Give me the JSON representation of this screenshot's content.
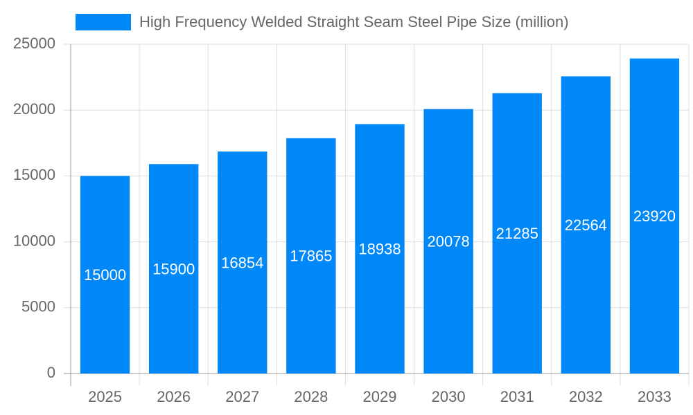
{
  "chart_data": {
    "type": "bar",
    "categories": [
      "2025",
      "2026",
      "2027",
      "2028",
      "2029",
      "2030",
      "2031",
      "2032",
      "2033"
    ],
    "series": [
      {
        "name": "High Frequency Welded Straight Seam Steel Pipe Size (million)",
        "color": "#0088f8",
        "values": [
          15000,
          15900,
          16854,
          17865,
          18938,
          20078,
          21285,
          22564,
          23920
        ]
      }
    ],
    "ylim": [
      0,
      25000
    ],
    "yticks": [
      0,
      5000,
      10000,
      15000,
      20000,
      25000
    ],
    "grid": true,
    "data_labels": true,
    "legend": "top"
  }
}
